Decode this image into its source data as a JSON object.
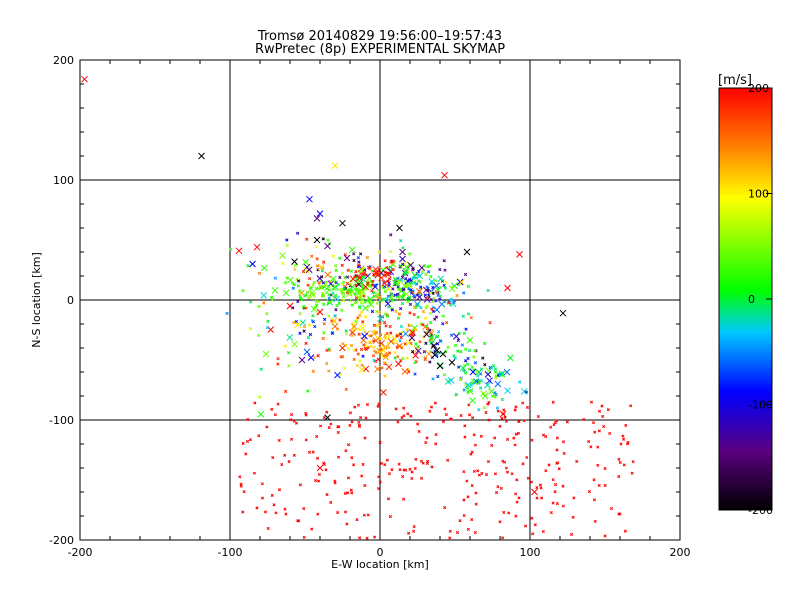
{
  "title_line1": "Tromsø 20140829 19:56:00–19:57:43",
  "title_line2": "RwPretec (8p) EXPERIMENTAL SKYMAP",
  "chart_data": {
    "type": "scatter",
    "xlabel": "E-W location [km]",
    "ylabel": "N-S location [km]",
    "xlim": [
      -200,
      200
    ],
    "ylim": [
      -200,
      200
    ],
    "xticks": [
      -200,
      -100,
      0,
      100,
      200
    ],
    "yticks": [
      -200,
      -100,
      0,
      100,
      200
    ],
    "grid": true,
    "colorbar": {
      "label": "[m/s]",
      "range": [
        -200,
        200
      ],
      "ticks": [
        200,
        100,
        0,
        -100,
        -200
      ],
      "colormap": [
        "#000000",
        "#5a0080",
        "#0000ff",
        "#00c8ff",
        "#00ff00",
        "#ffff00",
        "#ff8000",
        "#ff0000"
      ]
    },
    "points_large": [
      {
        "x": -197,
        "y": 184,
        "v": 200
      },
      {
        "x": -119,
        "y": 120,
        "v": -200
      },
      {
        "x": -30,
        "y": 112,
        "v": 100
      },
      {
        "x": 43,
        "y": 104,
        "v": 200
      },
      {
        "x": -47,
        "y": 84,
        "v": -100
      },
      {
        "x": -40,
        "y": 72,
        "v": -100
      },
      {
        "x": -42,
        "y": 68,
        "v": -150
      },
      {
        "x": -25,
        "y": 64,
        "v": -200
      },
      {
        "x": 13,
        "y": 60,
        "v": -200
      },
      {
        "x": -94,
        "y": 41,
        "v": 200
      },
      {
        "x": -82,
        "y": 44,
        "v": 200
      },
      {
        "x": -65,
        "y": 37,
        "v": 40
      },
      {
        "x": -57,
        "y": 32,
        "v": -200
      },
      {
        "x": -85,
        "y": 30,
        "v": -100
      },
      {
        "x": -42,
        "y": 50,
        "v": -200
      },
      {
        "x": -35,
        "y": 45,
        "v": -150
      },
      {
        "x": 58,
        "y": 40,
        "v": -200
      },
      {
        "x": 93,
        "y": 38,
        "v": 200
      },
      {
        "x": 85,
        "y": 10,
        "v": 200
      },
      {
        "x": 122,
        "y": -11,
        "v": -200
      },
      {
        "x": -70,
        "y": 8,
        "v": 20
      },
      {
        "x": -60,
        "y": -5,
        "v": 200
      },
      {
        "x": -40,
        "y": -10,
        "v": 200
      },
      {
        "x": -30,
        "y": -22,
        "v": 150
      },
      {
        "x": -25,
        "y": -40,
        "v": 180
      },
      {
        "x": -46,
        "y": -48,
        "v": -100
      },
      {
        "x": -52,
        "y": -50,
        "v": -150
      },
      {
        "x": -76,
        "y": -45,
        "v": 40
      },
      {
        "x": -12,
        "y": -58,
        "v": 100
      },
      {
        "x": 48,
        "y": -52,
        "v": -200
      },
      {
        "x": 62,
        "y": -60,
        "v": -100
      },
      {
        "x": 72,
        "y": -62,
        "v": -120
      },
      {
        "x": 69,
        "y": -78,
        "v": 40
      },
      {
        "x": 82,
        "y": -95,
        "v": 200
      },
      {
        "x": -35,
        "y": -98,
        "v": -200
      },
      {
        "x": 103,
        "y": -160,
        "v": 200
      },
      {
        "x": -40,
        "y": -140,
        "v": 200
      },
      {
        "x": 70,
        "y": -80,
        "v": 20
      },
      {
        "x": 38,
        "y": -42,
        "v": -200
      },
      {
        "x": 42,
        "y": -45,
        "v": -200
      },
      {
        "x": 36,
        "y": -38,
        "v": -180
      },
      {
        "x": 40,
        "y": -55,
        "v": -200
      },
      {
        "x": 15,
        "y": 40,
        "v": -150
      },
      {
        "x": -22,
        "y": 35,
        "v": -150
      }
    ],
    "clusters": [
      {
        "cx": -30,
        "cy": 25,
        "sx": 20,
        "sy": 15,
        "n": 90,
        "v": [
          -200,
          200
        ]
      },
      {
        "cx": 15,
        "cy": 15,
        "sx": 18,
        "sy": 12,
        "n": 90,
        "v": [
          -200,
          100
        ]
      },
      {
        "cx": -20,
        "cy": 5,
        "sx": 25,
        "sy": 8,
        "n": 160,
        "v": [
          0,
          60
        ]
      },
      {
        "cx": 20,
        "cy": 5,
        "sx": 15,
        "sy": 10,
        "n": 90,
        "v": [
          -150,
          40
        ]
      },
      {
        "cx": -5,
        "cy": 22,
        "sx": 10,
        "sy": 5,
        "n": 40,
        "v": [
          180,
          200
        ]
      },
      {
        "cx": -2,
        "cy": -35,
        "sx": 15,
        "sy": 14,
        "n": 160,
        "v": [
          80,
          200
        ]
      },
      {
        "cx": 40,
        "cy": -40,
        "sx": 15,
        "sy": 10,
        "n": 60,
        "v": [
          -200,
          40
        ]
      },
      {
        "cx": 65,
        "cy": -65,
        "sx": 12,
        "sy": 10,
        "n": 80,
        "v": [
          -100,
          60
        ]
      },
      {
        "cx": -50,
        "cy": -20,
        "sx": 25,
        "sy": 25,
        "n": 70,
        "v": [
          -100,
          200
        ]
      },
      {
        "cx": 30,
        "cy": -10,
        "sx": 20,
        "sy": 15,
        "n": 50,
        "v": [
          -100,
          200
        ]
      }
    ],
    "red_scatter": {
      "x_range": [
        -95,
        170
      ],
      "y_range": [
        -200,
        -85
      ],
      "n": 320,
      "v": 200
    }
  }
}
